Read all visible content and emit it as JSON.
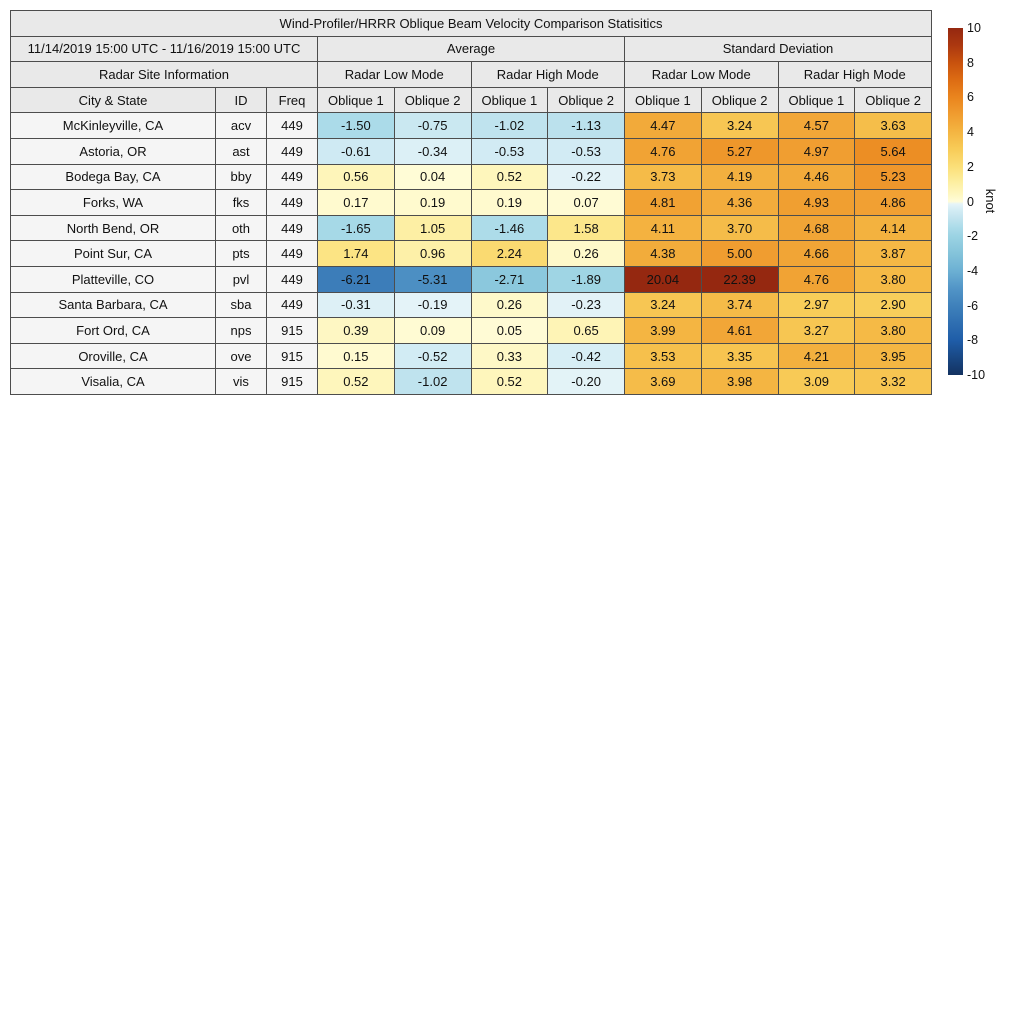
{
  "chart_data": {
    "type": "heatmap",
    "title": "Wind-Profiler/HRRR Oblique Beam Velocity Comparison Statisitics",
    "header": {
      "date_range": "11/14/2019 15:00 UTC - 11/16/2019 15:00 UTC",
      "group_average": "Average",
      "group_std": "Standard Deviation",
      "site_info": "Radar Site Information",
      "low_mode": "Radar Low Mode",
      "high_mode": "Radar High Mode",
      "col_city": "City & State",
      "col_id": "ID",
      "col_freq": "Freq",
      "oblique_headers": [
        "Oblique 1",
        "Oblique 2"
      ]
    },
    "rows": [
      {
        "city": "McKinleyville, CA",
        "id": "acv",
        "freq": "449",
        "values": [
          "-1.50",
          "-0.75",
          "-1.02",
          "-1.13",
          "4.47",
          "3.24",
          "4.57",
          "3.63"
        ]
      },
      {
        "city": "Astoria, OR",
        "id": "ast",
        "freq": "449",
        "values": [
          "-0.61",
          "-0.34",
          "-0.53",
          "-0.53",
          "4.76",
          "5.27",
          "4.97",
          "5.64"
        ]
      },
      {
        "city": "Bodega Bay, CA",
        "id": "bby",
        "freq": "449",
        "values": [
          "0.56",
          "0.04",
          "0.52",
          "-0.22",
          "3.73",
          "4.19",
          "4.46",
          "5.23"
        ]
      },
      {
        "city": "Forks, WA",
        "id": "fks",
        "freq": "449",
        "values": [
          "0.17",
          "0.19",
          "0.19",
          "0.07",
          "4.81",
          "4.36",
          "4.93",
          "4.86"
        ]
      },
      {
        "city": "North Bend, OR",
        "id": "oth",
        "freq": "449",
        "values": [
          "-1.65",
          "1.05",
          "-1.46",
          "1.58",
          "4.11",
          "3.70",
          "4.68",
          "4.14"
        ]
      },
      {
        "city": "Point Sur, CA",
        "id": "pts",
        "freq": "449",
        "values": [
          "1.74",
          "0.96",
          "2.24",
          "0.26",
          "4.38",
          "5.00",
          "4.66",
          "3.87"
        ]
      },
      {
        "city": "Platteville, CO",
        "id": "pvl",
        "freq": "449",
        "values": [
          "-6.21",
          "-5.31",
          "-2.71",
          "-1.89",
          "20.04",
          "22.39",
          "4.76",
          "3.80"
        ]
      },
      {
        "city": "Santa Barbara, CA",
        "id": "sba",
        "freq": "449",
        "values": [
          "-0.31",
          "-0.19",
          "0.26",
          "-0.23",
          "3.24",
          "3.74",
          "2.97",
          "2.90"
        ]
      },
      {
        "city": "Fort Ord, CA",
        "id": "nps",
        "freq": "915",
        "values": [
          "0.39",
          "0.09",
          "0.05",
          "0.65",
          "3.99",
          "4.61",
          "3.27",
          "3.80"
        ]
      },
      {
        "city": "Oroville, CA",
        "id": "ove",
        "freq": "915",
        "values": [
          "0.15",
          "-0.52",
          "0.33",
          "-0.42",
          "3.53",
          "3.35",
          "4.21",
          "3.95"
        ]
      },
      {
        "city": "Visalia, CA",
        "id": "vis",
        "freq": "915",
        "values": [
          "0.52",
          "-1.02",
          "0.52",
          "-0.20",
          "3.69",
          "3.98",
          "3.09",
          "3.32"
        ]
      }
    ],
    "colorbar": {
      "label": "knot",
      "min": -10,
      "max": 10,
      "ticks": [
        "10",
        "8",
        "6",
        "4",
        "2",
        "0",
        "-2",
        "-4",
        "-6",
        "-8",
        "-10"
      ],
      "stops": [
        [
          -10,
          "#133260"
        ],
        [
          -8,
          "#1f5da8"
        ],
        [
          -6,
          "#3f81bb"
        ],
        [
          -5,
          "#5295c7"
        ],
        [
          -4,
          "#6cb0d3"
        ],
        [
          -3,
          "#84c3da"
        ],
        [
          -2,
          "#9bd3e3"
        ],
        [
          -1.5,
          "#abdbe9"
        ],
        [
          -1,
          "#c0e3ee"
        ],
        [
          -0.5,
          "#d3ecf4"
        ],
        [
          -0.15,
          "#e6f4f8"
        ],
        [
          0,
          "#fffcd8"
        ],
        [
          0.5,
          "#fef6bd"
        ],
        [
          1,
          "#fdf0a6"
        ],
        [
          1.5,
          "#fce88e"
        ],
        [
          2,
          "#fbdf79"
        ],
        [
          3,
          "#f8cc58"
        ],
        [
          4,
          "#f4b542"
        ],
        [
          5,
          "#f09d30"
        ],
        [
          6,
          "#ea851e"
        ],
        [
          7,
          "#dd6c13"
        ],
        [
          8,
          "#c8520e"
        ],
        [
          9,
          "#ac3810"
        ],
        [
          10,
          "#952810"
        ]
      ]
    },
    "colors": {
      "header_bg": "#e9e9e9",
      "site_cell_bg": "#f5f5f5",
      "border": "#4d4d4d"
    }
  }
}
